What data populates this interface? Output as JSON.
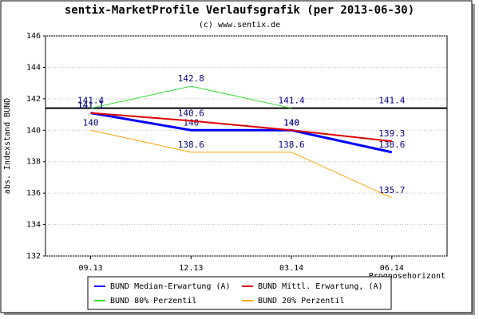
{
  "chart_data": {
    "type": "line",
    "title": "sentix-MarketProfile Verlaufsgrafik (per 2013-06-30)",
    "subtitle": "(c) www.sentix.de",
    "y_label": "abs. Indexstand BUND",
    "x_label": "Prognosehorizont",
    "categories": [
      "09.13",
      "12.13",
      "03.14",
      "06.14"
    ],
    "series": [
      {
        "name": "BUND Median-Erwartung (A)",
        "color": "#0000ff",
        "values": [
          141.1,
          140.0,
          140.0,
          138.6
        ]
      },
      {
        "name": "BUND Mittl. Erwartung, (A)",
        "color": "#e00000",
        "values": [
          141.1,
          140.6,
          140.0,
          139.3
        ]
      },
      {
        "name": "BUND 80% Perzentil",
        "color": "#33dd33",
        "values": [
          141.4,
          142.8,
          141.4,
          null
        ]
      },
      {
        "name": "BUND 20% Perzentil",
        "color": "#ffa500",
        "values": [
          140.0,
          138.6,
          138.6,
          135.7
        ]
      }
    ],
    "reference": 141.4,
    "ylim": [
      132,
      146
    ],
    "yticks": [
      132,
      134,
      136,
      138,
      140,
      142,
      144,
      146
    ],
    "grid": true
  }
}
